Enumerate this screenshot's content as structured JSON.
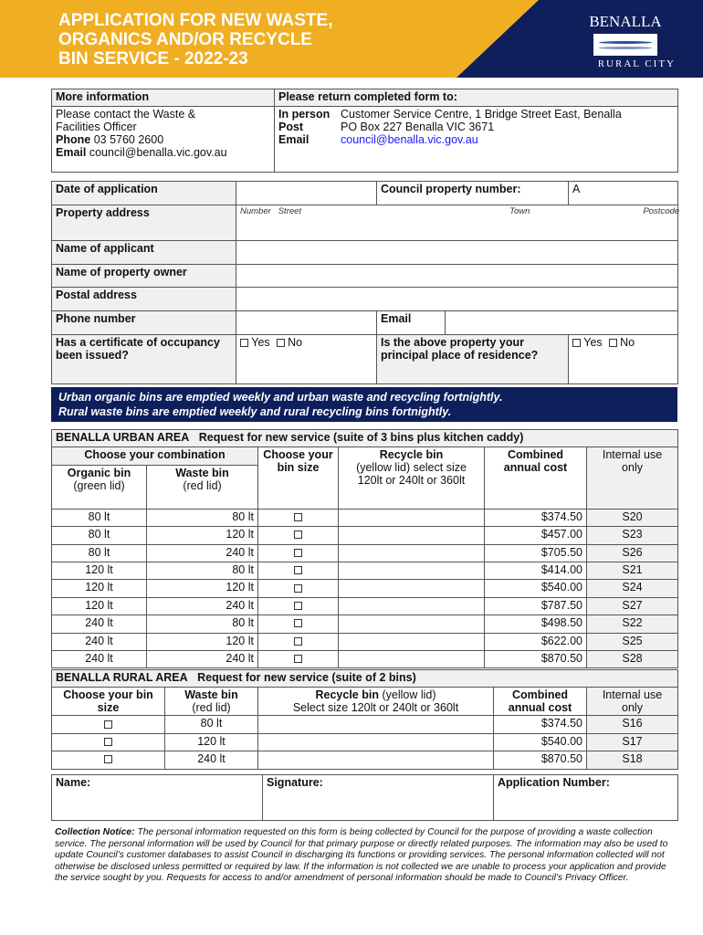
{
  "header": {
    "title_lines": [
      "APPLICATION FOR NEW WASTE,",
      "ORGANICS AND/OR RECYCLE",
      "BIN SERVICE - 2022-23"
    ],
    "logo_text": "BENALLA RURAL CITY",
    "logo_top": "BENALLA",
    "logo_bottom": "RURAL CITY"
  },
  "colors": {
    "orange": "#F0AE22",
    "navy": "#0E1F5B"
  },
  "info": {
    "more_heading": "More information",
    "contact": "Please contact the Waste & Facilities Officer",
    "phone_label": "Phone",
    "phone": "03 5760 2600",
    "email_label": "Email",
    "email": "council@benalla.vic.gov.au",
    "return_heading": "Please return completed form to:",
    "inperson_label": "In person",
    "inperson": "Customer Service Centre, 1 Bridge Street East, Benalla",
    "post_label": "Post",
    "post": "PO Box 227 Benalla VIC 3671",
    "email2_label": "Email",
    "email2": "council@benalla.vic.gov.au"
  },
  "form": {
    "date_label": "Date of application",
    "council_label": "Council property number:",
    "council_value": "A",
    "address_label": "Property address",
    "hint_number": "Number",
    "hint_street": "Street",
    "hint_town": "Town",
    "hint_postcode": "Postcode",
    "applicant_label": "Name of applicant",
    "owner_label": "Name of property owner",
    "postal_label": "Postal address",
    "phone_label": "Phone number",
    "email_label": "Email",
    "cert_label": "Has a certificate of occupancy been issued?",
    "residence_label": "Is the above property your principal place of residence?",
    "yes": "Yes",
    "no": "No"
  },
  "banner": {
    "line1": "Urban organic bins are emptied weekly and urban waste and recycling fortnightly.",
    "line2": "Rural waste bins are emptied weekly and rural recycling bins fortnightly."
  },
  "urban": {
    "area": "BENALLA URBAN AREA",
    "request": "Request for new service (suite of 3 bins plus kitchen caddy)",
    "combo": "Choose your combination",
    "organic": "Organic bin",
    "organic_sub": "(green lid)",
    "waste": "Waste bin",
    "waste_sub": "(red lid)",
    "choose": "Choose your bin size",
    "recycle": "Recycle bin",
    "recycle_sub": "(yellow lid) select size 120lt or 240lt or 360lt",
    "cost": "Combined annual cost",
    "internal": "Internal use only",
    "rows": [
      [
        "80 lt",
        "80 lt",
        "$374.50",
        "S20"
      ],
      [
        "80 lt",
        "120 lt",
        "$457.00",
        "S23"
      ],
      [
        "80 lt",
        "240 lt",
        "$705.50",
        "S26"
      ],
      [
        "120 lt",
        "80 lt",
        "$414.00",
        "S21"
      ],
      [
        "120 lt",
        "120 lt",
        "$540.00",
        "S24"
      ],
      [
        "120 lt",
        "240 lt",
        "$787.50",
        "S27"
      ],
      [
        "240 lt",
        "80 lt",
        "$498.50",
        "S22"
      ],
      [
        "240 lt",
        "120 lt",
        "$622.00",
        "S25"
      ],
      [
        "240 lt",
        "240 lt",
        "$870.50",
        "S28"
      ]
    ]
  },
  "rural": {
    "area": "BENALLA RURAL AREA",
    "request": "Request for new service (suite of 2 bins)",
    "choose": "Choose your bin size",
    "waste": "Waste bin",
    "waste_sub": "(red lid)",
    "recycle": "Recycle bin",
    "recycle_sub1": "(yellow lid)",
    "recycle_sub2": "Select size 120lt or 240lt or 360lt",
    "cost": "Combined annual cost",
    "internal": "Internal use only",
    "rows": [
      [
        "80 lt",
        "$374.50",
        "S16"
      ],
      [
        "120 lt",
        "$540.00",
        "S17"
      ],
      [
        "240 lt",
        "$870.50",
        "S18"
      ]
    ]
  },
  "footer": {
    "name_label": "Name:",
    "signature_label": "Signature:",
    "appnum_label": "Application Number:"
  },
  "notice": {
    "heading": "Collection Notice:",
    "text": "The personal information requested on this form is being collected by Council for the purpose of providing a waste collection service. The personal information will be used by Council for that primary purpose or directly related purposes. The information may also be used to update Council’s customer databases to assist Council in discharging its functions or providing services. The personal information collected will not otherwise be disclosed unless permitted or required by law. If the information is not collected we are unable to process your application and provide the service sought by you. Requests for access to and/or amendment of personal information should be made to Council’s Privacy Officer."
  }
}
